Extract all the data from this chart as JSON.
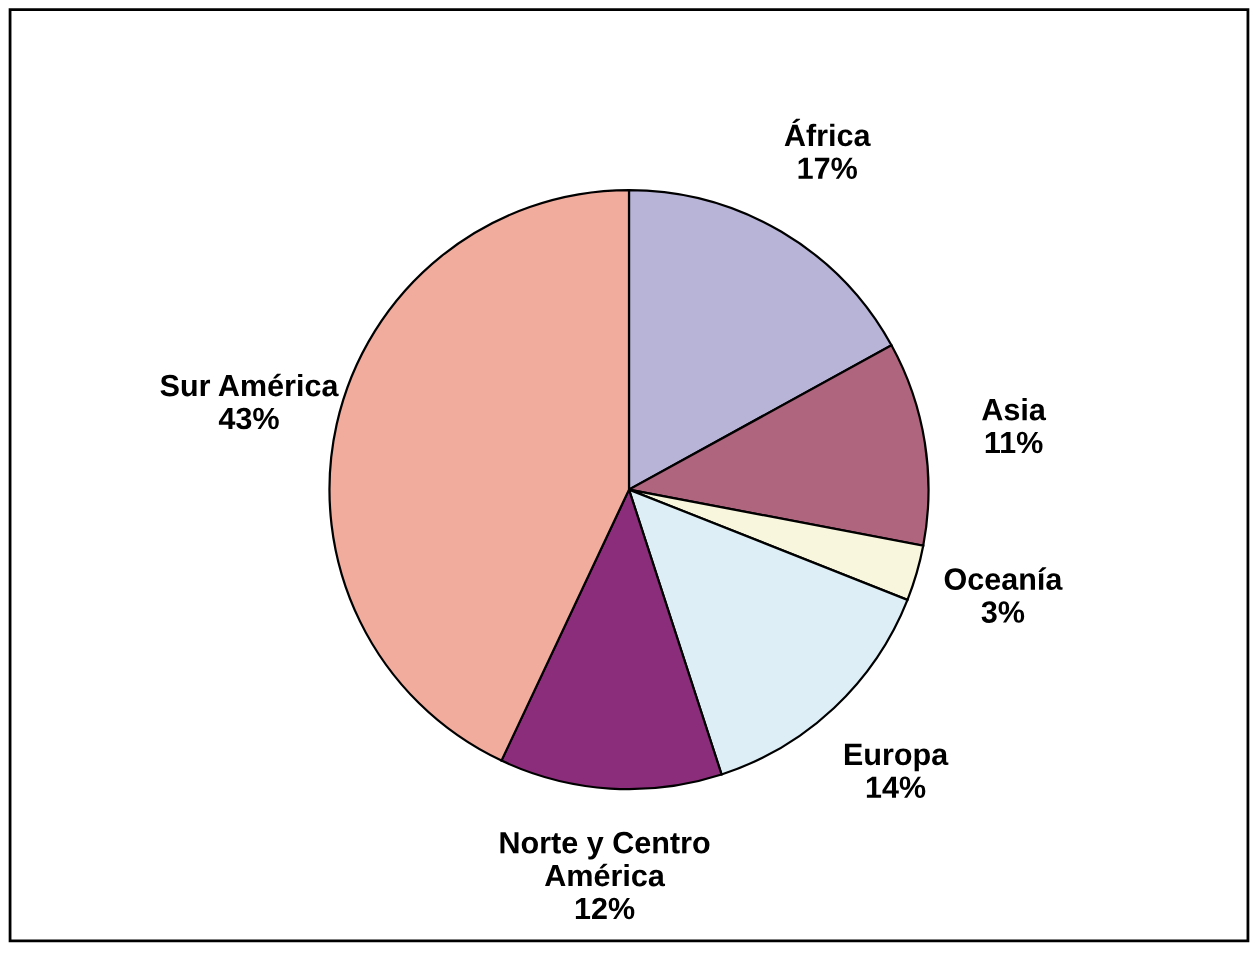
{
  "chart_data": {
    "type": "pie",
    "categories": [
      "África",
      "Asia",
      "Oceanía",
      "Europa",
      "Norte y Centro\nAmérica",
      "Sur América"
    ],
    "values": [
      17,
      11,
      3,
      14,
      12,
      43
    ],
    "value_labels": [
      "17%",
      "11%",
      "3%",
      "14%",
      "12%",
      "43%"
    ],
    "colors": [
      "#b8b4d8",
      "#b0657e",
      "#f8f6dc",
      "#ddeef7",
      "#8b2d7a",
      "#f2ac9e"
    ]
  }
}
